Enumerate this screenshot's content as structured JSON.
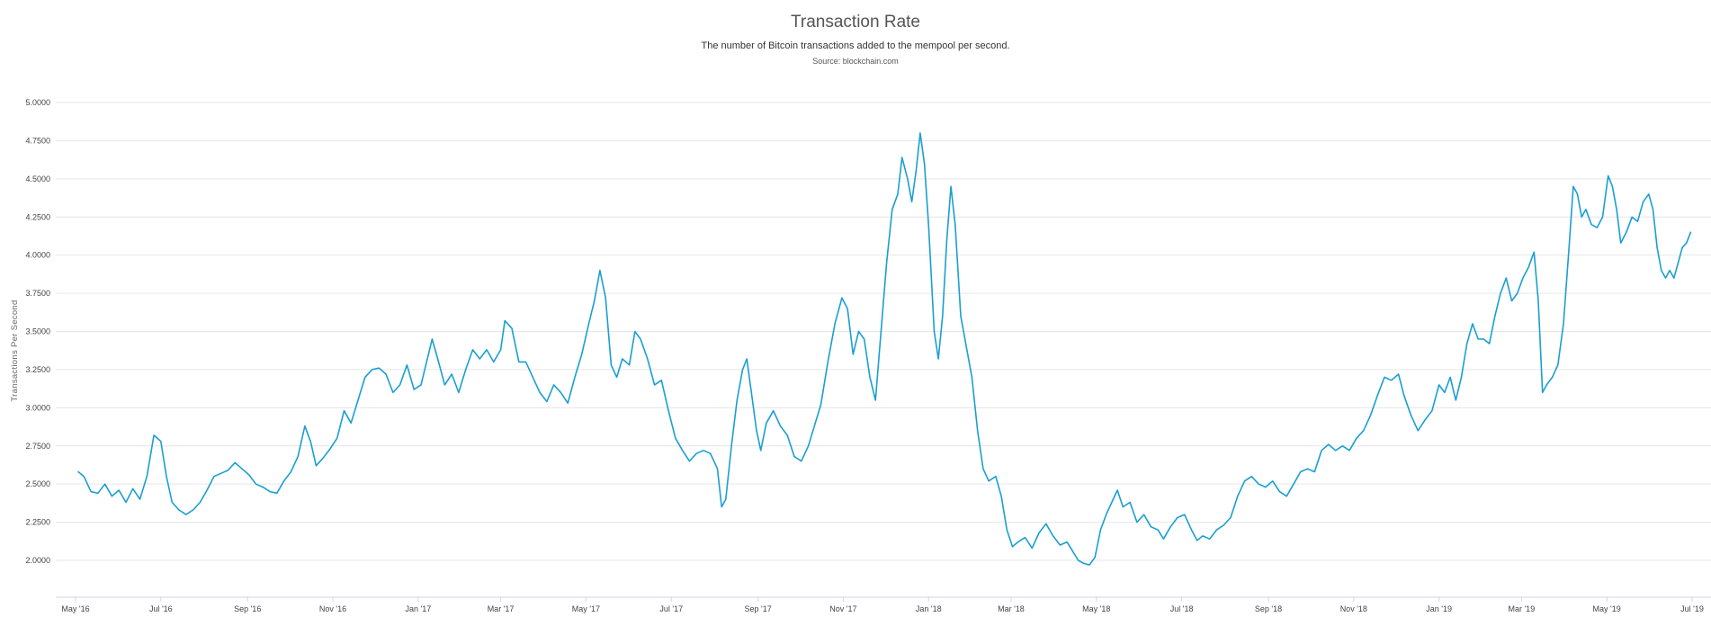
{
  "title": "Transaction Rate",
  "subtitle": "The number of Bitcoin transactions added to the mempool per second.",
  "source": "Source: blockchain.com",
  "chart_data": {
    "type": "line",
    "ylabel": "Transactions Per Second",
    "xlabel": "",
    "ylim": [
      1.85,
      5.0
    ],
    "y_ticks": [
      2.0,
      2.25,
      2.5,
      2.75,
      3.0,
      3.25,
      3.5,
      3.75,
      4.0,
      4.25,
      4.5,
      4.75,
      5.0
    ],
    "y_tick_labels": [
      "2.0000",
      "2.2500",
      "2.5000",
      "2.7500",
      "3.0000",
      "3.2500",
      "3.5000",
      "3.7500",
      "4.0000",
      "4.2500",
      "4.5000",
      "4.7500",
      "5.0000"
    ],
    "x_ticks": [
      "2016-05-01",
      "2016-07-01",
      "2016-09-01",
      "2016-11-01",
      "2017-01-01",
      "2017-03-01",
      "2017-05-01",
      "2017-07-01",
      "2017-09-01",
      "2017-11-01",
      "2018-01-01",
      "2018-03-01",
      "2018-05-01",
      "2018-07-01",
      "2018-09-01",
      "2018-11-01",
      "2019-01-01",
      "2019-03-01",
      "2019-05-01",
      "2019-07-01"
    ],
    "x_tick_labels": [
      "May '16",
      "Jul '16",
      "Sep '16",
      "Nov '16",
      "Jan '17",
      "Mar '17",
      "May '17",
      "Jul '17",
      "Sep '17",
      "Nov '17",
      "Jan '18",
      "Mar '18",
      "May '18",
      "Jul '18",
      "Sep '18",
      "Nov '18",
      "Jan '19",
      "Mar '19",
      "May '19",
      "Jul '19"
    ],
    "grid": true,
    "legend": "none",
    "line_color": "#1a9fd1",
    "series": [
      {
        "points": [
          [
            "2016-05-03",
            2.58
          ],
          [
            "2016-05-07",
            2.55
          ],
          [
            "2016-05-12",
            2.45
          ],
          [
            "2016-05-17",
            2.44
          ],
          [
            "2016-05-22",
            2.5
          ],
          [
            "2016-05-27",
            2.42
          ],
          [
            "2016-06-01",
            2.46
          ],
          [
            "2016-06-06",
            2.38
          ],
          [
            "2016-06-11",
            2.47
          ],
          [
            "2016-06-16",
            2.4
          ],
          [
            "2016-06-21",
            2.55
          ],
          [
            "2016-06-26",
            2.82
          ],
          [
            "2016-07-01",
            2.78
          ],
          [
            "2016-07-05",
            2.55
          ],
          [
            "2016-07-09",
            2.38
          ],
          [
            "2016-07-14",
            2.33
          ],
          [
            "2016-07-19",
            2.3
          ],
          [
            "2016-07-24",
            2.33
          ],
          [
            "2016-07-29",
            2.38
          ],
          [
            "2016-08-03",
            2.46
          ],
          [
            "2016-08-08",
            2.55
          ],
          [
            "2016-08-13",
            2.57
          ],
          [
            "2016-08-18",
            2.59
          ],
          [
            "2016-08-23",
            2.64
          ],
          [
            "2016-08-28",
            2.6
          ],
          [
            "2016-09-02",
            2.56
          ],
          [
            "2016-09-07",
            2.5
          ],
          [
            "2016-09-12",
            2.48
          ],
          [
            "2016-09-17",
            2.45
          ],
          [
            "2016-09-22",
            2.44
          ],
          [
            "2016-09-27",
            2.52
          ],
          [
            "2016-10-02",
            2.58
          ],
          [
            "2016-10-07",
            2.68
          ],
          [
            "2016-10-12",
            2.88
          ],
          [
            "2016-10-16",
            2.78
          ],
          [
            "2016-10-20",
            2.62
          ],
          [
            "2016-10-25",
            2.67
          ],
          [
            "2016-10-30",
            2.73
          ],
          [
            "2016-11-04",
            2.8
          ],
          [
            "2016-11-09",
            2.98
          ],
          [
            "2016-11-14",
            2.9
          ],
          [
            "2016-11-19",
            3.05
          ],
          [
            "2016-11-24",
            3.2
          ],
          [
            "2016-11-29",
            3.25
          ],
          [
            "2016-12-04",
            3.26
          ],
          [
            "2016-12-09",
            3.22
          ],
          [
            "2016-12-14",
            3.1
          ],
          [
            "2016-12-19",
            3.15
          ],
          [
            "2016-12-24",
            3.28
          ],
          [
            "2016-12-29",
            3.12
          ],
          [
            "2017-01-03",
            3.15
          ],
          [
            "2017-01-07",
            3.3
          ],
          [
            "2017-01-11",
            3.45
          ],
          [
            "2017-01-15",
            3.32
          ],
          [
            "2017-01-20",
            3.15
          ],
          [
            "2017-01-25",
            3.22
          ],
          [
            "2017-01-30",
            3.1
          ],
          [
            "2017-02-04",
            3.25
          ],
          [
            "2017-02-09",
            3.38
          ],
          [
            "2017-02-14",
            3.32
          ],
          [
            "2017-02-19",
            3.38
          ],
          [
            "2017-02-24",
            3.3
          ],
          [
            "2017-03-01",
            3.38
          ],
          [
            "2017-03-04",
            3.57
          ],
          [
            "2017-03-09",
            3.52
          ],
          [
            "2017-03-14",
            3.3
          ],
          [
            "2017-03-19",
            3.3
          ],
          [
            "2017-03-24",
            3.2
          ],
          [
            "2017-03-29",
            3.1
          ],
          [
            "2017-04-03",
            3.04
          ],
          [
            "2017-04-08",
            3.15
          ],
          [
            "2017-04-13",
            3.1
          ],
          [
            "2017-04-18",
            3.03
          ],
          [
            "2017-04-23",
            3.2
          ],
          [
            "2017-04-28",
            3.35
          ],
          [
            "2017-05-03",
            3.55
          ],
          [
            "2017-05-07",
            3.7
          ],
          [
            "2017-05-11",
            3.9
          ],
          [
            "2017-05-15",
            3.72
          ],
          [
            "2017-05-19",
            3.28
          ],
          [
            "2017-05-23",
            3.2
          ],
          [
            "2017-05-27",
            3.32
          ],
          [
            "2017-06-01",
            3.28
          ],
          [
            "2017-06-05",
            3.5
          ],
          [
            "2017-06-09",
            3.45
          ],
          [
            "2017-06-14",
            3.32
          ],
          [
            "2017-06-19",
            3.15
          ],
          [
            "2017-06-24",
            3.18
          ],
          [
            "2017-06-29",
            2.98
          ],
          [
            "2017-07-04",
            2.8
          ],
          [
            "2017-07-09",
            2.72
          ],
          [
            "2017-07-14",
            2.65
          ],
          [
            "2017-07-19",
            2.7
          ],
          [
            "2017-07-24",
            2.72
          ],
          [
            "2017-07-29",
            2.7
          ],
          [
            "2017-08-03",
            2.6
          ],
          [
            "2017-08-06",
            2.35
          ],
          [
            "2017-08-09",
            2.4
          ],
          [
            "2017-08-13",
            2.75
          ],
          [
            "2017-08-17",
            3.05
          ],
          [
            "2017-08-21",
            3.25
          ],
          [
            "2017-08-24",
            3.32
          ],
          [
            "2017-08-27",
            3.12
          ],
          [
            "2017-08-31",
            2.85
          ],
          [
            "2017-09-03",
            2.72
          ],
          [
            "2017-09-07",
            2.9
          ],
          [
            "2017-09-12",
            2.98
          ],
          [
            "2017-09-17",
            2.88
          ],
          [
            "2017-09-22",
            2.82
          ],
          [
            "2017-09-27",
            2.68
          ],
          [
            "2017-10-02",
            2.65
          ],
          [
            "2017-10-07",
            2.75
          ],
          [
            "2017-10-12",
            2.9
          ],
          [
            "2017-10-16",
            3.02
          ],
          [
            "2017-10-21",
            3.3
          ],
          [
            "2017-10-26",
            3.55
          ],
          [
            "2017-10-31",
            3.72
          ],
          [
            "2017-11-04",
            3.65
          ],
          [
            "2017-11-08",
            3.35
          ],
          [
            "2017-11-12",
            3.5
          ],
          [
            "2017-11-16",
            3.45
          ],
          [
            "2017-11-20",
            3.2
          ],
          [
            "2017-11-24",
            3.05
          ],
          [
            "2017-11-28",
            3.5
          ],
          [
            "2017-12-02",
            3.95
          ],
          [
            "2017-12-06",
            4.3
          ],
          [
            "2017-12-10",
            4.4
          ],
          [
            "2017-12-13",
            4.64
          ],
          [
            "2017-12-17",
            4.5
          ],
          [
            "2017-12-20",
            4.35
          ],
          [
            "2017-12-23",
            4.55
          ],
          [
            "2017-12-26",
            4.8
          ],
          [
            "2017-12-29",
            4.6
          ],
          [
            "2018-01-01",
            4.2
          ],
          [
            "2018-01-05",
            3.5
          ],
          [
            "2018-01-08",
            3.32
          ],
          [
            "2018-01-11",
            3.6
          ],
          [
            "2018-01-14",
            4.1
          ],
          [
            "2018-01-17",
            4.45
          ],
          [
            "2018-01-20",
            4.2
          ],
          [
            "2018-01-24",
            3.6
          ],
          [
            "2018-01-28",
            3.4
          ],
          [
            "2018-02-01",
            3.2
          ],
          [
            "2018-02-05",
            2.85
          ],
          [
            "2018-02-09",
            2.6
          ],
          [
            "2018-02-13",
            2.52
          ],
          [
            "2018-02-18",
            2.55
          ],
          [
            "2018-02-22",
            2.42
          ],
          [
            "2018-02-26",
            2.2
          ],
          [
            "2018-03-02",
            2.09
          ],
          [
            "2018-03-06",
            2.12
          ],
          [
            "2018-03-11",
            2.15
          ],
          [
            "2018-03-16",
            2.08
          ],
          [
            "2018-03-21",
            2.18
          ],
          [
            "2018-03-26",
            2.24
          ],
          [
            "2018-03-31",
            2.16
          ],
          [
            "2018-04-05",
            2.1
          ],
          [
            "2018-04-10",
            2.12
          ],
          [
            "2018-04-14",
            2.06
          ],
          [
            "2018-04-18",
            2.0
          ],
          [
            "2018-04-22",
            1.98
          ],
          [
            "2018-04-26",
            1.97
          ],
          [
            "2018-04-30",
            2.02
          ],
          [
            "2018-05-04",
            2.2
          ],
          [
            "2018-05-08",
            2.3
          ],
          [
            "2018-05-12",
            2.38
          ],
          [
            "2018-05-16",
            2.46
          ],
          [
            "2018-05-20",
            2.35
          ],
          [
            "2018-05-25",
            2.38
          ],
          [
            "2018-05-30",
            2.25
          ],
          [
            "2018-06-04",
            2.3
          ],
          [
            "2018-06-09",
            2.22
          ],
          [
            "2018-06-14",
            2.2
          ],
          [
            "2018-06-18",
            2.14
          ],
          [
            "2018-06-23",
            2.22
          ],
          [
            "2018-06-28",
            2.28
          ],
          [
            "2018-07-03",
            2.3
          ],
          [
            "2018-07-08",
            2.2
          ],
          [
            "2018-07-12",
            2.13
          ],
          [
            "2018-07-16",
            2.16
          ],
          [
            "2018-07-21",
            2.14
          ],
          [
            "2018-07-26",
            2.2
          ],
          [
            "2018-07-31",
            2.23
          ],
          [
            "2018-08-05",
            2.28
          ],
          [
            "2018-08-10",
            2.42
          ],
          [
            "2018-08-15",
            2.52
          ],
          [
            "2018-08-20",
            2.55
          ],
          [
            "2018-08-25",
            2.5
          ],
          [
            "2018-08-30",
            2.48
          ],
          [
            "2018-09-04",
            2.52
          ],
          [
            "2018-09-09",
            2.45
          ],
          [
            "2018-09-14",
            2.42
          ],
          [
            "2018-09-19",
            2.5
          ],
          [
            "2018-09-24",
            2.58
          ],
          [
            "2018-09-29",
            2.6
          ],
          [
            "2018-10-04",
            2.58
          ],
          [
            "2018-10-09",
            2.72
          ],
          [
            "2018-10-14",
            2.76
          ],
          [
            "2018-10-19",
            2.72
          ],
          [
            "2018-10-24",
            2.75
          ],
          [
            "2018-10-29",
            2.72
          ],
          [
            "2018-11-03",
            2.8
          ],
          [
            "2018-11-08",
            2.85
          ],
          [
            "2018-11-13",
            2.95
          ],
          [
            "2018-11-18",
            3.08
          ],
          [
            "2018-11-23",
            3.2
          ],
          [
            "2018-11-28",
            3.18
          ],
          [
            "2018-12-03",
            3.22
          ],
          [
            "2018-12-07",
            3.08
          ],
          [
            "2018-12-12",
            2.95
          ],
          [
            "2018-12-17",
            2.85
          ],
          [
            "2018-12-22",
            2.92
          ],
          [
            "2018-12-27",
            2.98
          ],
          [
            "2019-01-01",
            3.15
          ],
          [
            "2019-01-05",
            3.1
          ],
          [
            "2019-01-09",
            3.2
          ],
          [
            "2019-01-13",
            3.05
          ],
          [
            "2019-01-17",
            3.2
          ],
          [
            "2019-01-21",
            3.42
          ],
          [
            "2019-01-25",
            3.55
          ],
          [
            "2019-01-29",
            3.45
          ],
          [
            "2019-02-02",
            3.45
          ],
          [
            "2019-02-06",
            3.42
          ],
          [
            "2019-02-10",
            3.6
          ],
          [
            "2019-02-14",
            3.75
          ],
          [
            "2019-02-18",
            3.85
          ],
          [
            "2019-02-22",
            3.7
          ],
          [
            "2019-02-26",
            3.75
          ],
          [
            "2019-03-02",
            3.85
          ],
          [
            "2019-03-06",
            3.92
          ],
          [
            "2019-03-10",
            4.02
          ],
          [
            "2019-03-13",
            3.7
          ],
          [
            "2019-03-16",
            3.1
          ],
          [
            "2019-03-19",
            3.15
          ],
          [
            "2019-03-23",
            3.2
          ],
          [
            "2019-03-27",
            3.28
          ],
          [
            "2019-03-31",
            3.55
          ],
          [
            "2019-04-04",
            4.05
          ],
          [
            "2019-04-07",
            4.45
          ],
          [
            "2019-04-10",
            4.4
          ],
          [
            "2019-04-13",
            4.25
          ],
          [
            "2019-04-16",
            4.3
          ],
          [
            "2019-04-20",
            4.2
          ],
          [
            "2019-04-24",
            4.18
          ],
          [
            "2019-04-28",
            4.25
          ],
          [
            "2019-05-02",
            4.52
          ],
          [
            "2019-05-05",
            4.45
          ],
          [
            "2019-05-08",
            4.3
          ],
          [
            "2019-05-11",
            4.08
          ],
          [
            "2019-05-15",
            4.15
          ],
          [
            "2019-05-19",
            4.25
          ],
          [
            "2019-05-23",
            4.22
          ],
          [
            "2019-05-27",
            4.35
          ],
          [
            "2019-05-31",
            4.4
          ],
          [
            "2019-06-03",
            4.3
          ],
          [
            "2019-06-06",
            4.05
          ],
          [
            "2019-06-09",
            3.9
          ],
          [
            "2019-06-12",
            3.85
          ],
          [
            "2019-06-15",
            3.9
          ],
          [
            "2019-06-18",
            3.85
          ],
          [
            "2019-06-21",
            3.95
          ],
          [
            "2019-06-24",
            4.05
          ],
          [
            "2019-06-27",
            4.08
          ],
          [
            "2019-06-30",
            4.15
          ]
        ]
      }
    ]
  }
}
